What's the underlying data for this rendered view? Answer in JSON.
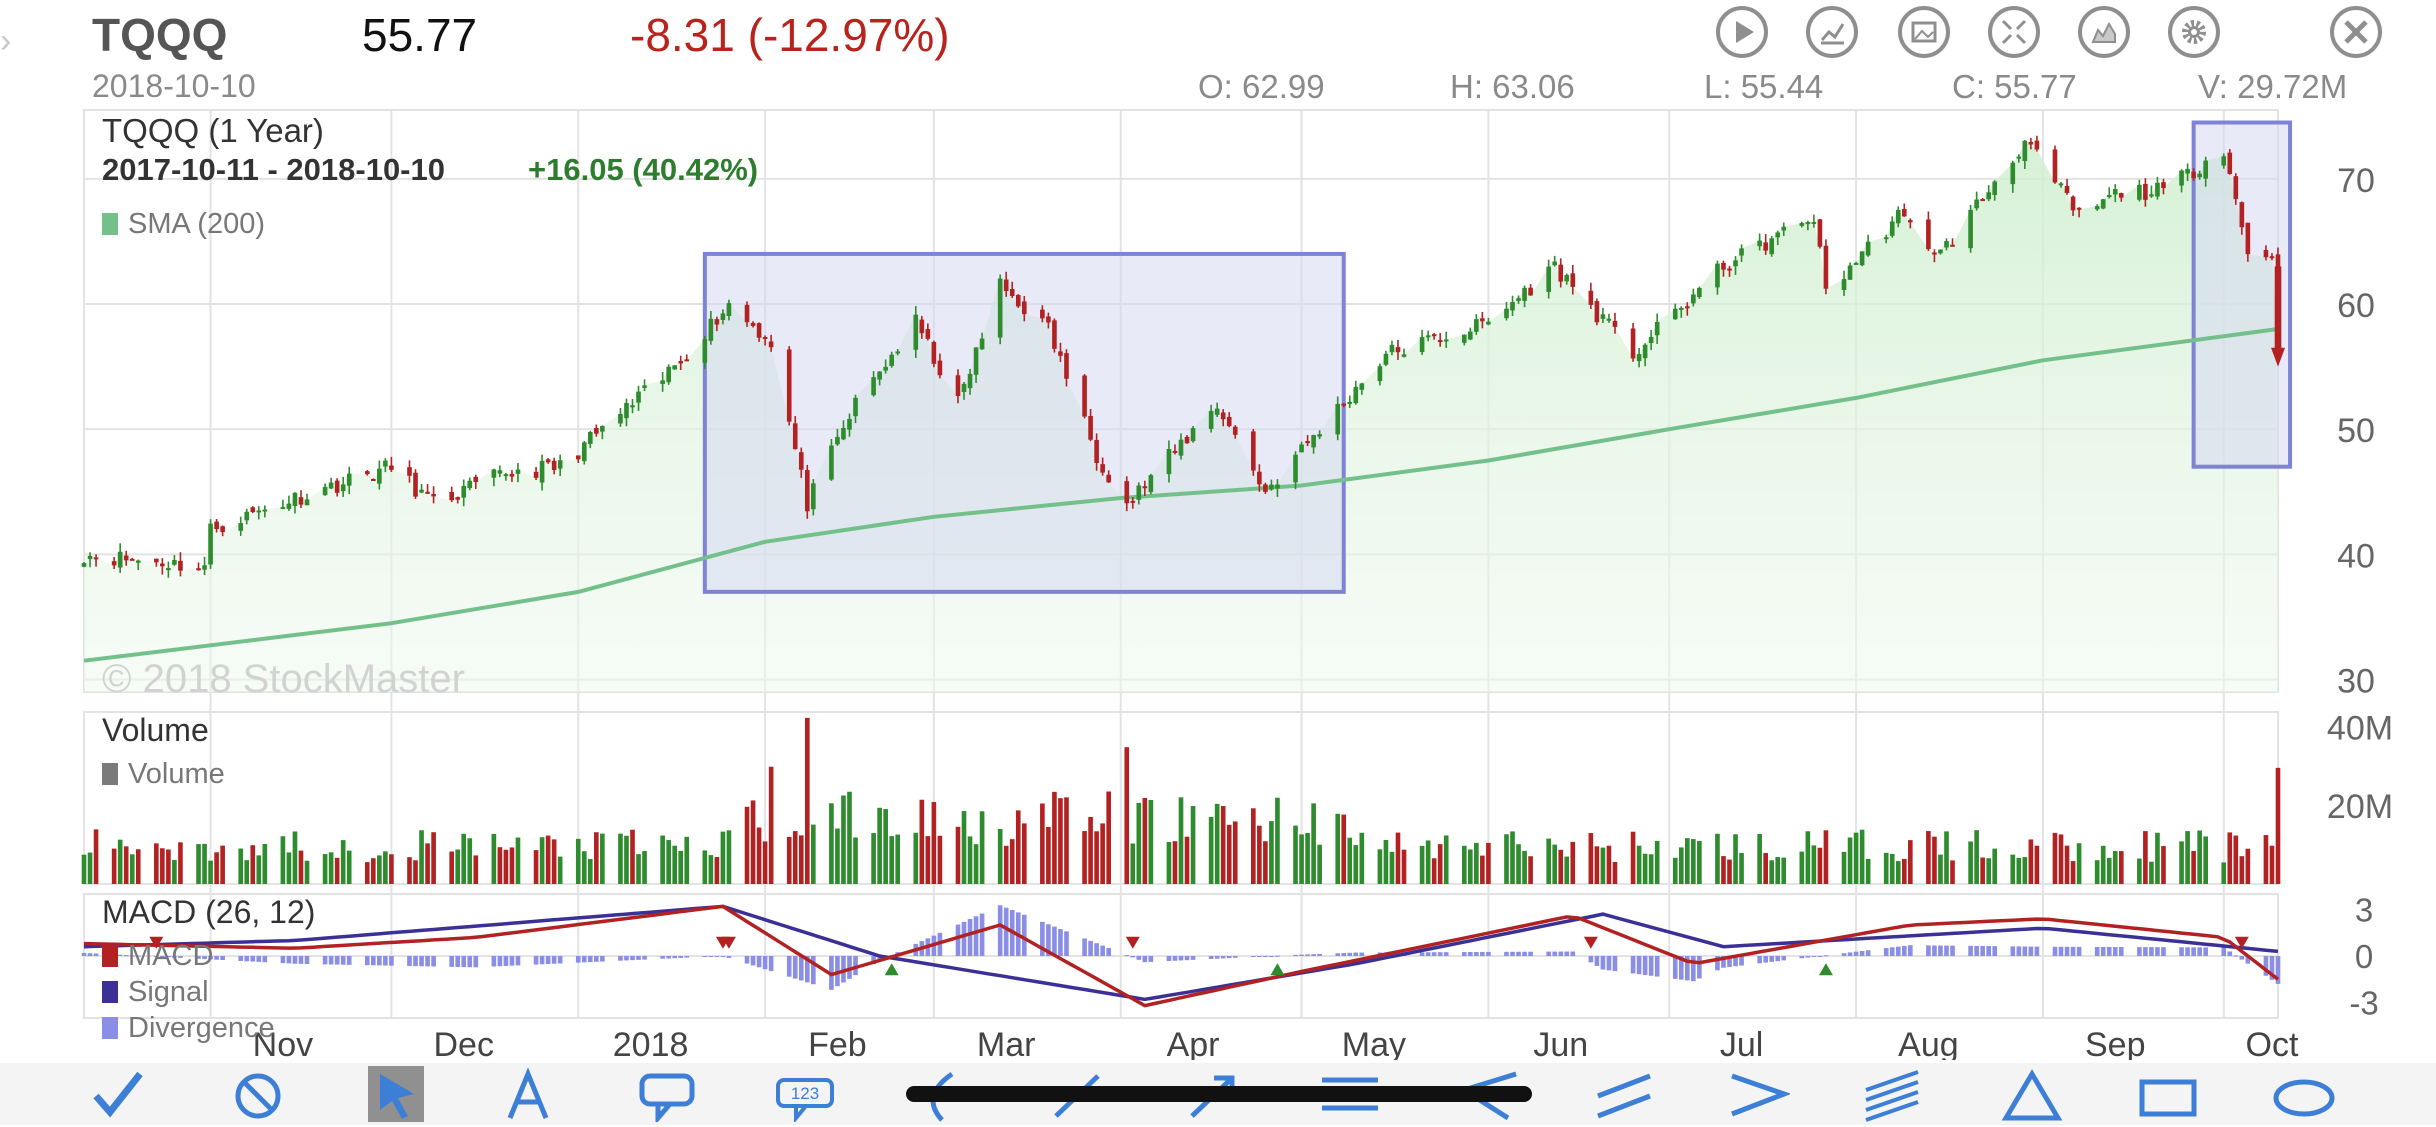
{
  "header": {
    "symbol": "TQQQ",
    "price": "55.77",
    "change": "-8.31 (-12.97%)",
    "date": "2018-10-10",
    "open": "O: 62.99",
    "high": "H: 63.06",
    "low": "L: 55.44",
    "close": "C: 55.77",
    "volume": "V: 29.72M"
  },
  "toolbar": {
    "icons": [
      "play-icon",
      "line-chart-icon",
      "image-icon",
      "collapse-icon",
      "mountain-chart-icon",
      "gear-icon",
      "close-icon"
    ]
  },
  "drawing_tools": [
    "checkmark-icon",
    "cancel-icon",
    "pointer-icon",
    "text-icon",
    "callout-icon",
    "number-label-icon",
    "arc-icon",
    "line-icon",
    "arrow-icon",
    "horizontal-lines-icon",
    "fan-icon",
    "parallel-lines-icon",
    "channel-icon",
    "multi-lines-icon",
    "triangle-icon",
    "rectangle-icon",
    "ellipse-icon"
  ],
  "colors": {
    "up": "#2e8b2e",
    "down": "#b22222",
    "sma": "#73c08a",
    "macd": "#b22222",
    "signal": "#3a3096",
    "divergence": "#8a8ee6",
    "box_stroke": "#7f83d6",
    "box_fill": "#d6d8f0"
  },
  "chart_data": [
    {
      "type": "candlestick",
      "title": "TQQQ (1 Year)",
      "range_label": "2017-10-11 - 2018-10-10",
      "range_change": "+16.05 (40.42%)",
      "legend": [
        "SMA (200)"
      ],
      "watermark": "© 2018 StockMaster",
      "y_ticks": [
        70,
        60,
        50,
        40,
        30
      ],
      "ylim": [
        29,
        75.5
      ],
      "x_ticks": [
        "Nov",
        "Dec",
        "2018",
        "Feb",
        "Mar",
        "Apr",
        "May",
        "Jun",
        "Jul",
        "Aug",
        "Sep",
        "Oct"
      ],
      "close_series": [
        {
          "date": "2017-10-11",
          "close": 40.0
        },
        {
          "date": "2017-10-31",
          "close": 39.0
        },
        {
          "date": "2017-11-01",
          "close": 42.0
        },
        {
          "date": "2017-11-15",
          "close": 44.5
        },
        {
          "date": "2017-12-01",
          "close": 47.0
        },
        {
          "date": "2017-12-08",
          "close": 44.0
        },
        {
          "date": "2017-12-20",
          "close": 46.5
        },
        {
          "date": "2017-12-29",
          "close": 47.0
        },
        {
          "date": "2018-01-05",
          "close": 50.0
        },
        {
          "date": "2018-01-15",
          "close": 54.0
        },
        {
          "date": "2018-01-26",
          "close": 60.0
        },
        {
          "date": "2018-02-02",
          "close": 57.0
        },
        {
          "date": "2018-02-08",
          "close": 44.0
        },
        {
          "date": "2018-02-16",
          "close": 52.0
        },
        {
          "date": "2018-02-26",
          "close": 58.5
        },
        {
          "date": "2018-03-05",
          "close": 52.0
        },
        {
          "date": "2018-03-12",
          "close": 61.5
        },
        {
          "date": "2018-03-20",
          "close": 58.0
        },
        {
          "date": "2018-03-28",
          "close": 48.0
        },
        {
          "date": "2018-04-02",
          "close": 44.0
        },
        {
          "date": "2018-04-17",
          "close": 52.0
        },
        {
          "date": "2018-04-25",
          "close": 45.0
        },
        {
          "date": "2018-05-04",
          "close": 50.0
        },
        {
          "date": "2018-05-15",
          "close": 56.0
        },
        {
          "date": "2018-06-01",
          "close": 58.5
        },
        {
          "date": "2018-06-12",
          "close": 63.0
        },
        {
          "date": "2018-06-25",
          "close": 56.0
        },
        {
          "date": "2018-07-10",
          "close": 63.0
        },
        {
          "date": "2018-07-25",
          "close": 67.0
        },
        {
          "date": "2018-07-27",
          "close": 61.0
        },
        {
          "date": "2018-08-08",
          "close": 67.0
        },
        {
          "date": "2018-08-15",
          "close": 64.0
        },
        {
          "date": "2018-08-29",
          "close": 73.0
        },
        {
          "date": "2018-09-07",
          "close": 67.0
        },
        {
          "date": "2018-09-14",
          "close": 69.0
        },
        {
          "date": "2018-09-21",
          "close": 69.0
        },
        {
          "date": "2018-10-01",
          "close": 72.5
        },
        {
          "date": "2018-10-05",
          "close": 64.0
        },
        {
          "date": "2018-10-09",
          "close": 64.1
        },
        {
          "date": "2018-10-10",
          "close": 55.77
        }
      ],
      "sma_200": [
        {
          "date": "2017-10-11",
          "value": 31.5
        },
        {
          "date": "2017-12-01",
          "value": 34.5
        },
        {
          "date": "2018-01-01",
          "value": 37.0
        },
        {
          "date": "2018-02-01",
          "value": 41.0
        },
        {
          "date": "2018-03-01",
          "value": 43.0
        },
        {
          "date": "2018-04-01",
          "value": 44.5
        },
        {
          "date": "2018-05-01",
          "value": 45.5
        },
        {
          "date": "2018-06-01",
          "value": 47.5
        },
        {
          "date": "2018-07-01",
          "value": 50.0
        },
        {
          "date": "2018-08-01",
          "value": 52.5
        },
        {
          "date": "2018-09-01",
          "value": 55.5
        },
        {
          "date": "2018-10-10",
          "value": 58.0
        }
      ],
      "annotations": [
        {
          "type": "rectangle",
          "from": "2018-01-22",
          "to": "2018-05-08",
          "y_low": 37.0,
          "y_high": 64.0
        },
        {
          "type": "rectangle",
          "from": "2018-09-26",
          "to": "2018-10-12",
          "y_low": 47.0,
          "y_high": 74.5
        }
      ]
    },
    {
      "type": "bar",
      "title": "Volume",
      "legend": [
        "Volume"
      ],
      "y_ticks": [
        "40M",
        "20M"
      ],
      "ylim": [
        0,
        44
      ],
      "last_value": 29.72,
      "unit": "M",
      "notable": [
        {
          "date": "2018-02-08",
          "value": 42.5
        },
        {
          "date": "2018-02-02",
          "value": 30.0
        },
        {
          "date": "2018-04-02",
          "value": 35.0
        },
        {
          "date": "2018-10-10",
          "value": 29.72
        }
      ]
    },
    {
      "type": "line",
      "title": "MACD (26, 12)",
      "legend": [
        "MACD",
        "Signal",
        "Divergence"
      ],
      "y_ticks": [
        3,
        0,
        -3
      ],
      "ylim": [
        -4,
        4
      ],
      "series": [
        {
          "name": "MACD",
          "points": [
            {
              "date": "2017-10-11",
              "value": 0.8
            },
            {
              "date": "2017-11-15",
              "value": 0.5
            },
            {
              "date": "2017-12-15",
              "value": 1.2
            },
            {
              "date": "2018-01-25",
              "value": 3.2
            },
            {
              "date": "2018-02-12",
              "value": -1.2
            },
            {
              "date": "2018-03-12",
              "value": 2.0
            },
            {
              "date": "2018-04-05",
              "value": -3.2
            },
            {
              "date": "2018-05-01",
              "value": -1.0
            },
            {
              "date": "2018-06-15",
              "value": 2.6
            },
            {
              "date": "2018-07-05",
              "value": -0.5
            },
            {
              "date": "2018-08-10",
              "value": 2.0
            },
            {
              "date": "2018-09-01",
              "value": 2.4
            },
            {
              "date": "2018-10-01",
              "value": 1.2
            },
            {
              "date": "2018-10-10",
              "value": -1.5
            }
          ]
        },
        {
          "name": "Signal",
          "points": [
            {
              "date": "2017-10-11",
              "value": 0.6
            },
            {
              "date": "2017-11-15",
              "value": 1.0
            },
            {
              "date": "2018-01-25",
              "value": 3.2
            },
            {
              "date": "2018-02-20",
              "value": 0.0
            },
            {
              "date": "2018-04-05",
              "value": -2.8
            },
            {
              "date": "2018-05-10",
              "value": -0.5
            },
            {
              "date": "2018-06-20",
              "value": 2.7
            },
            {
              "date": "2018-07-10",
              "value": 0.6
            },
            {
              "date": "2018-09-01",
              "value": 1.8
            },
            {
              "date": "2018-10-10",
              "value": 0.3
            }
          ]
        }
      ]
    }
  ]
}
